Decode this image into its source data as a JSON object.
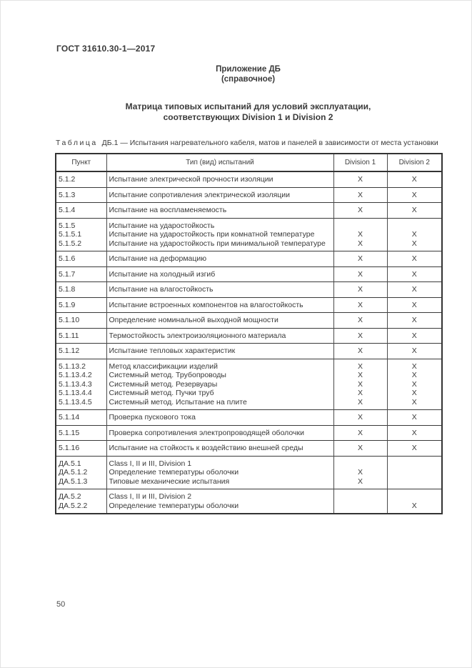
{
  "page": {
    "doc_code": "ГОСТ 31610.30-1—2017",
    "page_number": "50"
  },
  "appendix": {
    "label": "Приложение ДБ",
    "note": "(справочное)"
  },
  "title": {
    "line1": "Матрица типовых испытаний для условий эксплуатации,",
    "line2": "соответствующих Division 1 и Division 2"
  },
  "table": {
    "caption_word": "Таблица",
    "caption_rest": "ДБ.1 — Испытания нагревательного кабеля, матов и панелей в зависимости от места установки",
    "columns": [
      "Пункт",
      "Тип (вид) испытаний",
      "Division 1",
      "Division 2"
    ],
    "rows": [
      {
        "punkt": [
          "5.1.2"
        ],
        "desc": [
          "Испытание электрической прочности изоляции"
        ],
        "d1": [
          "X"
        ],
        "d2": [
          "X"
        ]
      },
      {
        "punkt": [
          "5.1.3"
        ],
        "desc": [
          "Испытание сопротивления электрической изоляции"
        ],
        "d1": [
          "X"
        ],
        "d2": [
          "X"
        ]
      },
      {
        "punkt": [
          "5.1.4"
        ],
        "desc": [
          "Испытание на воспламеняемость"
        ],
        "d1": [
          "X"
        ],
        "d2": [
          "X"
        ]
      },
      {
        "punkt": [
          "5.1.5",
          "5.1.5.1",
          "5.1.5.2"
        ],
        "desc": [
          "Испытание на ударостойкость",
          "Испытание на ударостойкость при комнатной температуре",
          "Испытание на ударостойкость при минимальной температуре"
        ],
        "d1": [
          "",
          "X",
          "X"
        ],
        "d2": [
          "",
          "X",
          "X"
        ]
      },
      {
        "punkt": [
          "5.1.6"
        ],
        "desc": [
          "Испытание на деформацию"
        ],
        "d1": [
          "X"
        ],
        "d2": [
          "X"
        ]
      },
      {
        "punkt": [
          "5.1.7"
        ],
        "desc": [
          "Испытание на холодный изгиб"
        ],
        "d1": [
          "X"
        ],
        "d2": [
          "X"
        ]
      },
      {
        "punkt": [
          "5.1.8"
        ],
        "desc": [
          "Испытание на влагостойкость"
        ],
        "d1": [
          "X"
        ],
        "d2": [
          "X"
        ]
      },
      {
        "punkt": [
          "5.1.9"
        ],
        "desc": [
          "Испытание встроенных компонентов на влагостойкость"
        ],
        "d1": [
          "X"
        ],
        "d2": [
          "X"
        ]
      },
      {
        "punkt": [
          "5.1.10"
        ],
        "desc": [
          "Определение номинальной выходной мощности"
        ],
        "d1": [
          "X"
        ],
        "d2": [
          "X"
        ]
      },
      {
        "punkt": [
          "5.1.11"
        ],
        "desc": [
          "Термостойкость электроизоляционного материала"
        ],
        "d1": [
          "X"
        ],
        "d2": [
          "X"
        ]
      },
      {
        "punkt": [
          "5.1.12"
        ],
        "desc": [
          "Испытание тепловых характеристик"
        ],
        "d1": [
          "X"
        ],
        "d2": [
          "X"
        ]
      },
      {
        "punkt": [
          "5.1.13.2",
          "5.1.13.4.2",
          "5.1.13.4.3",
          "5.1.13.4.4",
          "5.1.13.4.5"
        ],
        "desc": [
          "Метод классификации изделий",
          "Системный метод. Трубопроводы",
          "Системный метод. Резервуары",
          "Системный метод. Пучки труб",
          "Системный метод. Испытание на плите"
        ],
        "d1": [
          "X",
          "X",
          "X",
          "X",
          "X"
        ],
        "d2": [
          "X",
          "X",
          "X",
          "X",
          "X"
        ]
      },
      {
        "punkt": [
          "5.1.14"
        ],
        "desc": [
          "Проверка пускового тока"
        ],
        "d1": [
          "X"
        ],
        "d2": [
          "X"
        ]
      },
      {
        "punkt": [
          "5.1.15"
        ],
        "desc": [
          "Проверка сопротивления электропроводящей оболочки"
        ],
        "d1": [
          "X"
        ],
        "d2": [
          "X"
        ]
      },
      {
        "punkt": [
          "5.1.16"
        ],
        "desc": [
          "Испытание на стойкость к воздействию внешней среды"
        ],
        "d1": [
          "X"
        ],
        "d2": [
          "X"
        ]
      },
      {
        "punkt": [
          "ДА.5.1",
          "ДА.5.1.2",
          "ДА.5.1.3"
        ],
        "desc": [
          "Class I, II и III, Division 1",
          "Определение температуры оболочки",
          "Типовые механические испытания"
        ],
        "d1": [
          "",
          "X",
          "X"
        ],
        "d2": [
          "",
          "",
          ""
        ]
      },
      {
        "punkt": [
          "ДА.5.2",
          "ДА.5.2.2"
        ],
        "desc": [
          "Class I, II и III, Division 2",
          "Определение температуры оболочки"
        ],
        "d1": [
          "",
          ""
        ],
        "d2": [
          "",
          "X"
        ]
      }
    ]
  }
}
